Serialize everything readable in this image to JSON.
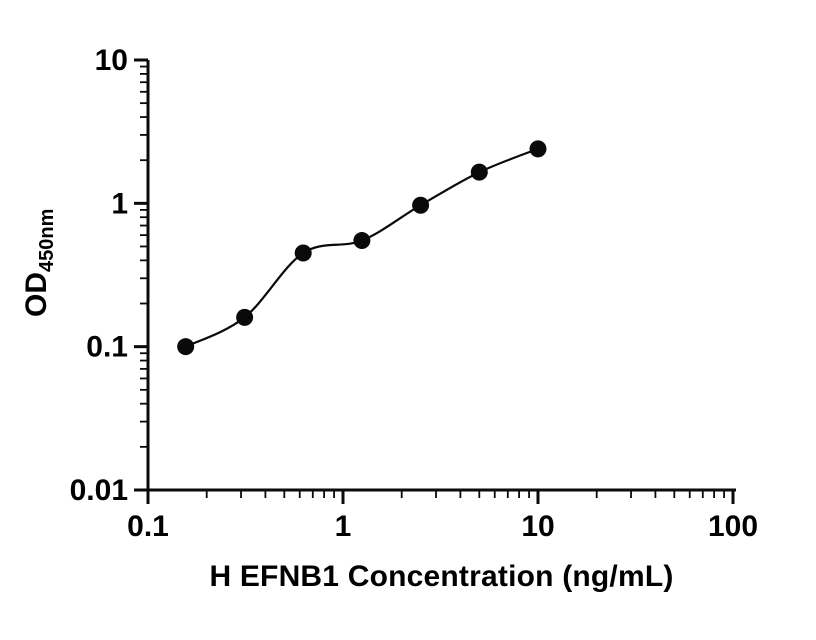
{
  "chart_data": {
    "type": "scatter",
    "title": "",
    "xlabel": "H EFNB1 Concentration (ng/mL)",
    "ylabel_main": "OD",
    "ylabel_sub": "450nm",
    "xscale": "log",
    "yscale": "log",
    "xlim": [
      0.1,
      100
    ],
    "ylim": [
      0.01,
      10
    ],
    "x_ticks": [
      0.1,
      1,
      10,
      100
    ],
    "x_tick_labels": [
      "0.1",
      "1",
      "10",
      "100"
    ],
    "y_ticks": [
      0.01,
      0.1,
      1,
      10
    ],
    "y_tick_labels": [
      "0.01",
      "0.1",
      "1",
      "10"
    ],
    "grid": false,
    "legend": "none",
    "point_color": "#0a0a0a",
    "line_color": "#0a0a0a",
    "points": [
      {
        "x": 0.156,
        "y": 0.1
      },
      {
        "x": 0.313,
        "y": 0.16
      },
      {
        "x": 0.625,
        "y": 0.45
      },
      {
        "x": 1.25,
        "y": 0.55
      },
      {
        "x": 2.5,
        "y": 0.97
      },
      {
        "x": 5,
        "y": 1.65
      },
      {
        "x": 10,
        "y": 2.4
      }
    ]
  }
}
